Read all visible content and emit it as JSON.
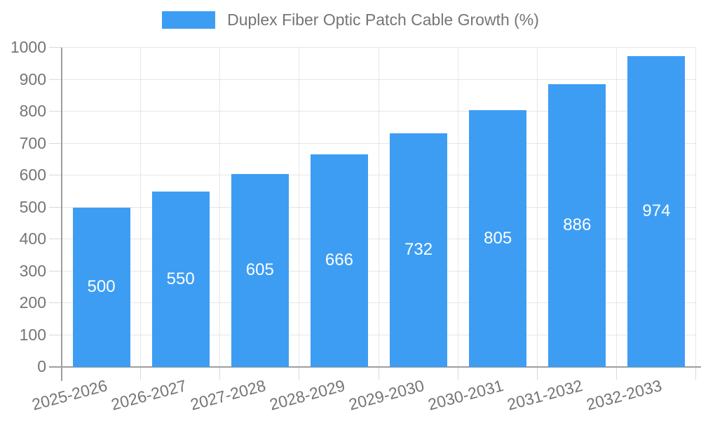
{
  "legend": {
    "label": "Duplex Fiber Optic Patch Cable Growth (%)"
  },
  "chart_data": {
    "type": "bar",
    "title": "",
    "categories": [
      "2025-2026",
      "2026-2027",
      "2027-2028",
      "2028-2029",
      "2029-2030",
      "2030-2031",
      "2031-2032",
      "2032-2033"
    ],
    "series": [
      {
        "name": "Duplex Fiber Optic Patch Cable Growth (%)",
        "values": [
          500,
          550,
          605,
          666,
          732,
          805,
          886,
          974
        ]
      }
    ],
    "xlabel": "",
    "ylabel": "",
    "ylim": [
      0,
      1000
    ],
    "yticks": [
      0,
      100,
      200,
      300,
      400,
      500,
      600,
      700,
      800,
      900,
      1000
    ],
    "grid": "horizontal and vertical light gray lines",
    "legend_position": "top-center",
    "value_label_position": "inside-center",
    "x_tick_rotation_deg": -15
  },
  "colors": {
    "bar": "#3D9DF3",
    "grid": "#E6E6E6",
    "tick": "#D9D9D9",
    "axis": "#9E9E9E",
    "text": "#757575",
    "value_label": "#FFFFFF",
    "background": "#FFFFFF"
  }
}
